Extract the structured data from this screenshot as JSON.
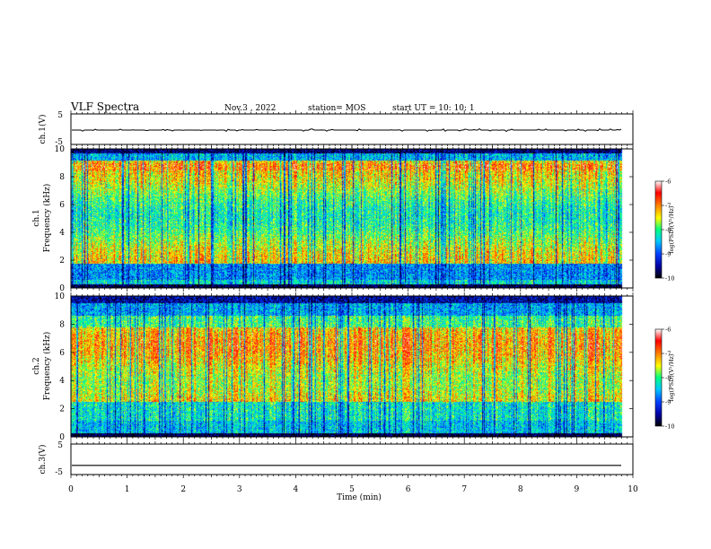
{
  "header": {
    "title": "VLF Spectra",
    "date": "Nov.3 , 2022",
    "station": "station= MOS",
    "start_ut": "start UT =  10: 10: 1"
  },
  "colors": {
    "frame": "#000000",
    "colormap": [
      "#000000",
      "#0000a0",
      "#0040ff",
      "#00c8ff",
      "#00ff80",
      "#ffff00",
      "#ff8000",
      "#ff0000",
      "#ffffff"
    ]
  },
  "chart_data": [
    {
      "type": "line",
      "panel": "ch1-waveform",
      "ylabel": "ch.1(V)",
      "ylim": [
        -5,
        5
      ],
      "yticks": [
        "5",
        "-5"
      ],
      "series": [
        {
          "values_summary": "near-constant trace at about -0.3 V with small spikes"
        }
      ]
    },
    {
      "type": "heatmap",
      "panel": "ch1-spectrogram",
      "ylabel": "ch.1\nFrequency (kHz)",
      "ylabel_line1": "ch.1",
      "ylabel_line2": "Frequency (kHz)",
      "ylim": [
        0,
        10
      ],
      "yticks": [
        "0",
        "2",
        "4",
        "6",
        "8",
        "10"
      ],
      "xlim": [
        0,
        10
      ],
      "colorbar": {
        "label": "log(PSD)(V²/Hz)",
        "range": [
          -10,
          -6
        ],
        "ticks": [
          "-6",
          "-7",
          "-8",
          "-9",
          "-10"
        ]
      }
    },
    {
      "type": "heatmap",
      "panel": "ch2-spectrogram",
      "ylabel_line1": "ch.2",
      "ylabel_line2": "Frequency (kHz)",
      "ylim": [
        0,
        10
      ],
      "yticks": [
        "0",
        "2",
        "4",
        "6",
        "8",
        "10"
      ],
      "xlim": [
        0,
        10
      ],
      "colorbar": {
        "label": "log(PSD)(V²/Hz)",
        "range": [
          -10,
          -6
        ],
        "ticks": [
          "-6",
          "-7",
          "-8",
          "-9",
          "-10"
        ]
      }
    },
    {
      "type": "line",
      "panel": "ch3-waveform",
      "ylabel": "ch.3(V)",
      "ylim": [
        -5,
        5
      ],
      "yticks": [
        "5",
        "-5"
      ],
      "series": [
        {
          "values_summary": "near-constant trace at about -2 V"
        }
      ]
    }
  ],
  "xaxis": {
    "label": "Time (min)",
    "ticks": [
      "0",
      "1",
      "2",
      "3",
      "4",
      "5",
      "6",
      "7",
      "8",
      "9",
      "10"
    ],
    "range": [
      0,
      10
    ]
  }
}
